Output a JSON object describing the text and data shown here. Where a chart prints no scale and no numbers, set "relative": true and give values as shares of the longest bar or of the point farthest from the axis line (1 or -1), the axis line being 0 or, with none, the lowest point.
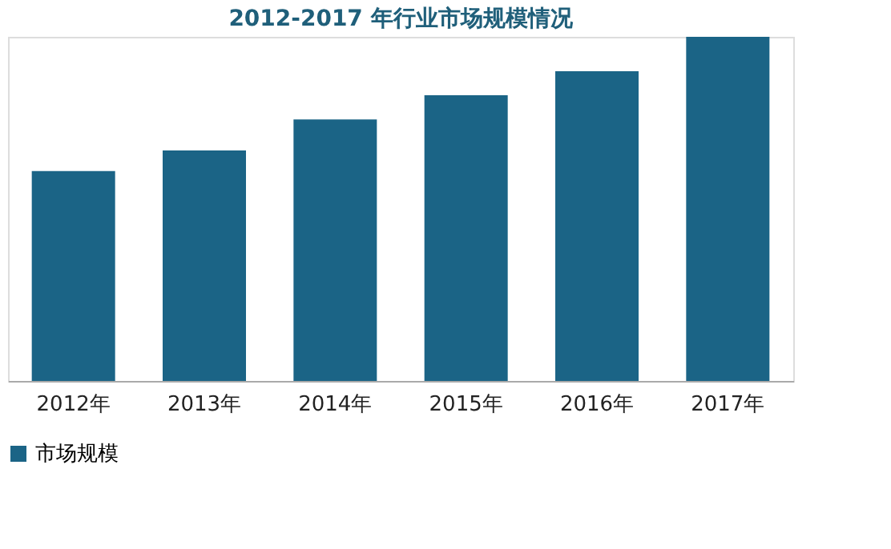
{
  "chart_data": {
    "type": "bar",
    "title": "2012-2017 年行业市场规模情况",
    "categories": [
      "2012年",
      "2013年",
      "2014年",
      "2015年",
      "2016年",
      "2017年"
    ],
    "relative": true,
    "series": [
      {
        "name": "市场规模",
        "color": "#1b6486",
        "values": [
          0.61,
          0.67,
          0.76,
          0.83,
          0.9,
          1
        ]
      }
    ],
    "legend": "bottom"
  }
}
